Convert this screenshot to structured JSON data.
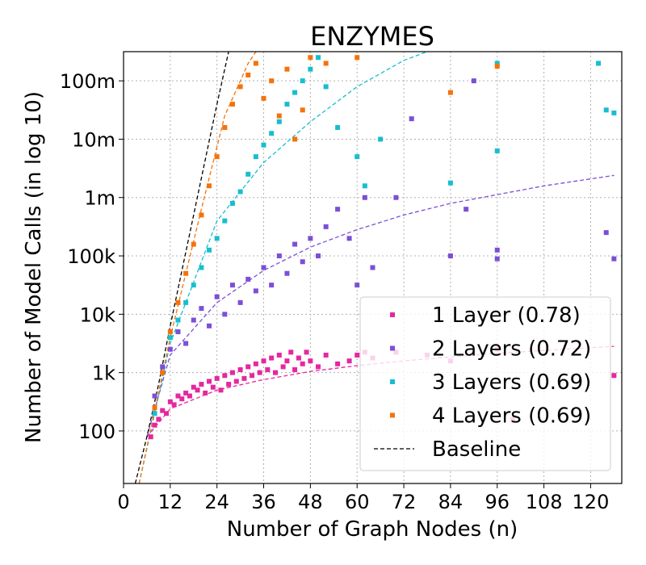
{
  "chart_data": {
    "type": "scatter",
    "title": "ENZYMES",
    "xlabel": "Number of Graph Nodes (n)",
    "ylabel": "Number of Model Calls (in log 10)",
    "xlim": [
      0,
      128
    ],
    "ylim_log10": [
      1.1,
      8.5
    ],
    "x_ticks": [
      0,
      12,
      24,
      36,
      48,
      60,
      72,
      84,
      96,
      108,
      120
    ],
    "x_tick_labels": [
      "0",
      "12",
      "24",
      "36",
      "48",
      "60",
      "72",
      "84",
      "96",
      "108",
      "120"
    ],
    "y_ticks_log10": [
      2,
      3,
      4,
      5,
      6,
      7,
      8
    ],
    "y_tick_labels": [
      "100",
      "1k",
      "10k",
      "100k",
      "1m",
      "10m",
      "100m"
    ],
    "grid": true,
    "legend_position": "bottom-right",
    "series": [
      {
        "name": "1 Layer",
        "label": "1 Layer (0.78)",
        "color": "#e6279f",
        "trend_log10_at_n": [
          [
            6,
            1.9
          ],
          [
            12,
            2.38
          ],
          [
            24,
            2.7
          ],
          [
            36,
            2.88
          ],
          [
            48,
            3.02
          ],
          [
            60,
            3.12
          ],
          [
            72,
            3.2
          ],
          [
            84,
            3.27
          ],
          [
            96,
            3.33
          ],
          [
            108,
            3.38
          ],
          [
            126,
            3.45
          ]
        ],
        "points": [
          [
            7,
            1.9
          ],
          [
            8,
            2.1
          ],
          [
            9,
            2.2
          ],
          [
            10,
            2.35
          ],
          [
            11,
            2.3
          ],
          [
            12,
            2.5
          ],
          [
            13,
            2.45
          ],
          [
            14,
            2.6
          ],
          [
            15,
            2.55
          ],
          [
            16,
            2.65
          ],
          [
            17,
            2.6
          ],
          [
            18,
            2.75
          ],
          [
            19,
            2.7
          ],
          [
            20,
            2.8
          ],
          [
            21,
            2.65
          ],
          [
            22,
            2.85
          ],
          [
            23,
            2.75
          ],
          [
            24,
            2.9
          ],
          [
            25,
            2.7
          ],
          [
            26,
            2.95
          ],
          [
            27,
            2.8
          ],
          [
            28,
            3.0
          ],
          [
            29,
            2.85
          ],
          [
            30,
            3.05
          ],
          [
            31,
            2.9
          ],
          [
            32,
            3.1
          ],
          [
            33,
            2.95
          ],
          [
            34,
            3.15
          ],
          [
            35,
            3.0
          ],
          [
            36,
            3.2
          ],
          [
            37,
            3.05
          ],
          [
            38,
            3.25
          ],
          [
            39,
            3.0
          ],
          [
            40,
            3.3
          ],
          [
            41,
            3.1
          ],
          [
            42,
            3.2
          ],
          [
            43,
            3.35
          ],
          [
            44,
            3.05
          ],
          [
            45,
            3.25
          ],
          [
            46,
            3.15
          ],
          [
            47,
            3.35
          ],
          [
            48,
            3.2
          ],
          [
            50,
            3.1
          ],
          [
            52,
            3.3
          ],
          [
            55,
            3.15
          ],
          [
            58,
            3.2
          ],
          [
            60,
            3.3
          ],
          [
            62,
            3.35
          ],
          [
            64,
            3.25
          ],
          [
            70,
            3.35
          ],
          [
            78,
            3.3
          ],
          [
            84,
            3.2
          ],
          [
            96,
            3.4
          ],
          [
            100,
            2.2
          ],
          [
            126,
            2.95
          ]
        ]
      },
      {
        "name": "2 Layers",
        "label": "2 Layers (0.72)",
        "color": "#7b4fd6",
        "trend_log10_at_n": [
          [
            6,
            1.9
          ],
          [
            12,
            3.3
          ],
          [
            24,
            4.2
          ],
          [
            36,
            4.75
          ],
          [
            48,
            5.15
          ],
          [
            60,
            5.45
          ],
          [
            72,
            5.7
          ],
          [
            84,
            5.9
          ],
          [
            96,
            6.05
          ],
          [
            108,
            6.2
          ],
          [
            126,
            6.38
          ]
        ],
        "points": [
          [
            8,
            2.6
          ],
          [
            10,
            3.1
          ],
          [
            12,
            3.4
          ],
          [
            14,
            3.7
          ],
          [
            16,
            3.5
          ],
          [
            18,
            3.9
          ],
          [
            20,
            4.1
          ],
          [
            22,
            3.8
          ],
          [
            24,
            4.3
          ],
          [
            26,
            4.0
          ],
          [
            28,
            4.5
          ],
          [
            30,
            4.2
          ],
          [
            32,
            4.6
          ],
          [
            34,
            4.4
          ],
          [
            36,
            4.8
          ],
          [
            38,
            4.5
          ],
          [
            40,
            5.0
          ],
          [
            42,
            4.7
          ],
          [
            44,
            5.2
          ],
          [
            46,
            4.9
          ],
          [
            48,
            5.3
          ],
          [
            50,
            5.0
          ],
          [
            52,
            5.5
          ],
          [
            55,
            5.8
          ],
          [
            58,
            5.3
          ],
          [
            60,
            4.5
          ],
          [
            62,
            6.0
          ],
          [
            64,
            4.8
          ],
          [
            70,
            6.0
          ],
          [
            74,
            7.35
          ],
          [
            84,
            5.0
          ],
          [
            88,
            5.8
          ],
          [
            90,
            8.0
          ],
          [
            96,
            5.1
          ],
          [
            96,
            4.95
          ],
          [
            124,
            5.4
          ],
          [
            126,
            4.95
          ]
        ]
      },
      {
        "name": "3 Layers",
        "label": "3 Layers (0.69)",
        "color": "#17becf",
        "trend_log10_at_n": [
          [
            4,
            1.1
          ],
          [
            12,
            3.5
          ],
          [
            24,
            5.6
          ],
          [
            36,
            6.6
          ],
          [
            48,
            7.3
          ],
          [
            60,
            7.9
          ],
          [
            72,
            8.35
          ],
          [
            78,
            8.5
          ]
        ],
        "points": [
          [
            8,
            2.3
          ],
          [
            10,
            3.0
          ],
          [
            12,
            3.6
          ],
          [
            14,
            3.9
          ],
          [
            16,
            4.2
          ],
          [
            18,
            4.5
          ],
          [
            20,
            4.8
          ],
          [
            22,
            5.1
          ],
          [
            24,
            5.3
          ],
          [
            26,
            5.6
          ],
          [
            28,
            5.9
          ],
          [
            30,
            6.1
          ],
          [
            32,
            6.4
          ],
          [
            34,
            6.7
          ],
          [
            36,
            6.9
          ],
          [
            38,
            7.1
          ],
          [
            40,
            7.3
          ],
          [
            42,
            7.6
          ],
          [
            44,
            7.8
          ],
          [
            46,
            8.0
          ],
          [
            48,
            8.2
          ],
          [
            50,
            8.4
          ],
          [
            52,
            7.9
          ],
          [
            55,
            7.2
          ],
          [
            60,
            6.7
          ],
          [
            62,
            6.2
          ],
          [
            66,
            7.0
          ],
          [
            84,
            6.25
          ],
          [
            96,
            6.8
          ],
          [
            96,
            8.3
          ],
          [
            122,
            8.3
          ],
          [
            124,
            7.5
          ],
          [
            126,
            7.45
          ]
        ]
      },
      {
        "name": "4 Layers",
        "label": "4 Layers (0.69)",
        "color": "#f5720a",
        "trend_log10_at_n": [
          [
            4,
            1.1
          ],
          [
            12,
            3.6
          ],
          [
            20,
            5.8
          ],
          [
            26,
            7.4
          ],
          [
            32,
            8.3
          ],
          [
            34,
            8.5
          ]
        ],
        "points": [
          [
            8,
            2.4
          ],
          [
            10,
            3.0
          ],
          [
            12,
            3.7
          ],
          [
            14,
            4.2
          ],
          [
            16,
            4.7
          ],
          [
            18,
            5.2
          ],
          [
            20,
            5.7
          ],
          [
            22,
            6.2
          ],
          [
            24,
            6.7
          ],
          [
            26,
            7.2
          ],
          [
            28,
            7.6
          ],
          [
            30,
            7.9
          ],
          [
            32,
            8.1
          ],
          [
            34,
            8.3
          ],
          [
            36,
            7.7
          ],
          [
            38,
            8.0
          ],
          [
            40,
            7.4
          ],
          [
            42,
            8.2
          ],
          [
            44,
            7.0
          ],
          [
            46,
            7.5
          ],
          [
            48,
            8.4
          ],
          [
            52,
            8.3
          ],
          [
            60,
            8.4
          ],
          [
            84,
            7.8
          ],
          [
            96,
            8.25
          ]
        ]
      },
      {
        "name": "Baseline",
        "label": "Baseline",
        "color": "#000000",
        "style": "dashed",
        "trend_log10_at_n": [
          [
            3,
            1.1
          ],
          [
            6,
            1.9
          ],
          [
            9,
            2.8
          ],
          [
            12,
            3.8
          ],
          [
            15,
            4.75
          ],
          [
            18,
            5.7
          ],
          [
            21,
            6.65
          ],
          [
            24,
            7.6
          ],
          [
            27,
            8.5
          ]
        ]
      }
    ]
  }
}
